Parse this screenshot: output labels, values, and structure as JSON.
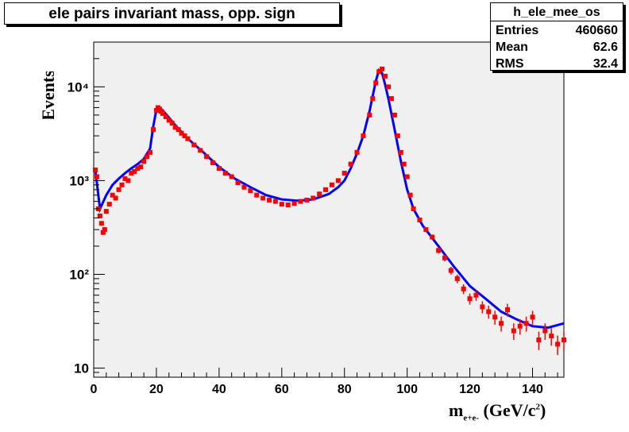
{
  "title": "ele pairs invariant mass, opp. sign",
  "stats": {
    "name": "h_ele_mee_os",
    "rows": [
      {
        "key": "Entries",
        "value": "460660"
      },
      {
        "key": "Mean",
        "value": "62.6"
      },
      {
        "key": "RMS",
        "value": "32.4"
      }
    ]
  },
  "colors": {
    "frame_fill": "#f0f0f0",
    "series_points": "#ff0000",
    "series_reference": "#0000ff"
  },
  "chart_data": {
    "type": "scatter",
    "title": "ele pairs invariant mass, opp. sign",
    "ylabel": "Events",
    "xlabel": "m_{e+e-} (GeV/c2)",
    "xlim": [
      0,
      150
    ],
    "ylim": [
      8,
      30000
    ],
    "yscale": "log",
    "x_ticks": [
      0,
      20,
      40,
      60,
      80,
      100,
      120,
      140
    ],
    "x_tick_labels": [
      "0",
      "20",
      "40",
      "60",
      "80",
      "100",
      "120",
      "140"
    ],
    "y_ticks": [
      10,
      100,
      1000,
      10000
    ],
    "y_tick_labels": [
      "10",
      "10²",
      "10³",
      "10⁴"
    ],
    "grid": false,
    "series": [
      {
        "style": "line",
        "color": "#0000ff",
        "x": [
          0.5,
          2,
          4,
          6,
          8,
          10,
          12,
          14,
          16,
          18,
          19,
          20,
          21,
          22,
          24,
          26,
          28,
          30,
          35,
          40,
          45,
          50,
          55,
          60,
          65,
          70,
          75,
          78,
          80,
          82,
          84,
          86,
          88,
          89,
          90,
          91,
          92,
          93,
          94,
          96,
          98,
          100,
          102,
          105,
          110,
          115,
          120,
          125,
          130,
          135,
          140,
          145,
          150
        ],
        "y": [
          1300,
          500,
          700,
          900,
          1050,
          1200,
          1350,
          1500,
          1700,
          2200,
          3800,
          5700,
          6000,
          5600,
          4700,
          3900,
          3300,
          2800,
          2000,
          1400,
          1050,
          850,
          700,
          630,
          610,
          630,
          720,
          850,
          1000,
          1350,
          1950,
          3000,
          5500,
          8000,
          11500,
          15000,
          14000,
          10500,
          7500,
          3500,
          1600,
          800,
          500,
          330,
          200,
          120,
          75,
          55,
          40,
          33,
          28,
          27,
          30
        ]
      },
      {
        "style": "points",
        "color": "#ff0000",
        "x": [
          0.5,
          1,
          1.5,
          2,
          2.5,
          3,
          3.5,
          4,
          5,
          6,
          7,
          8,
          9,
          10,
          11,
          12,
          13,
          14,
          15,
          16,
          17,
          18,
          19,
          20,
          20.5,
          21,
          21.5,
          22,
          23,
          24,
          25,
          26,
          27,
          28,
          29,
          30,
          32,
          34,
          36,
          38,
          40,
          42,
          44,
          46,
          48,
          50,
          52,
          54,
          56,
          58,
          60,
          62,
          64,
          66,
          68,
          70,
          72,
          74,
          76,
          78,
          80,
          82,
          84,
          86,
          88,
          89,
          90,
          91,
          92,
          93,
          94,
          95,
          96,
          97,
          98,
          99,
          100,
          101,
          102,
          104,
          106,
          108,
          110,
          112,
          114,
          116,
          118,
          120,
          122,
          124,
          126,
          128,
          130,
          132,
          134,
          136,
          138,
          140,
          142,
          144,
          146,
          148,
          150
        ],
        "y": [
          1300,
          1100,
          500,
          420,
          350,
          280,
          300,
          470,
          560,
          700,
          650,
          800,
          900,
          1050,
          1000,
          1200,
          1250,
          1350,
          1400,
          1600,
          1800,
          2000,
          3500,
          5600,
          6000,
          5800,
          5500,
          5200,
          4800,
          4400,
          4100,
          3700,
          3500,
          3200,
          3000,
          2800,
          2400,
          2100,
          1800,
          1550,
          1350,
          1200,
          1100,
          950,
          850,
          780,
          700,
          650,
          620,
          600,
          560,
          550,
          570,
          600,
          620,
          650,
          720,
          800,
          900,
          1000,
          1200,
          1500,
          2000,
          3000,
          5000,
          7500,
          11000,
          14500,
          15500,
          13000,
          10000,
          7500,
          5000,
          3000,
          2000,
          1500,
          1100,
          700,
          500,
          380,
          300,
          250,
          180,
          150,
          110,
          90,
          70,
          55,
          60,
          45,
          40,
          35,
          30,
          42,
          25,
          28,
          30,
          35,
          20,
          25,
          22,
          18,
          20
        ]
      }
    ]
  },
  "axis_labels": {
    "y": "Events",
    "x_main": "m",
    "x_sub": "e+e-",
    "x_units": "(GeV/c",
    "x_units_sup": "2",
    "x_units_close": ")"
  }
}
